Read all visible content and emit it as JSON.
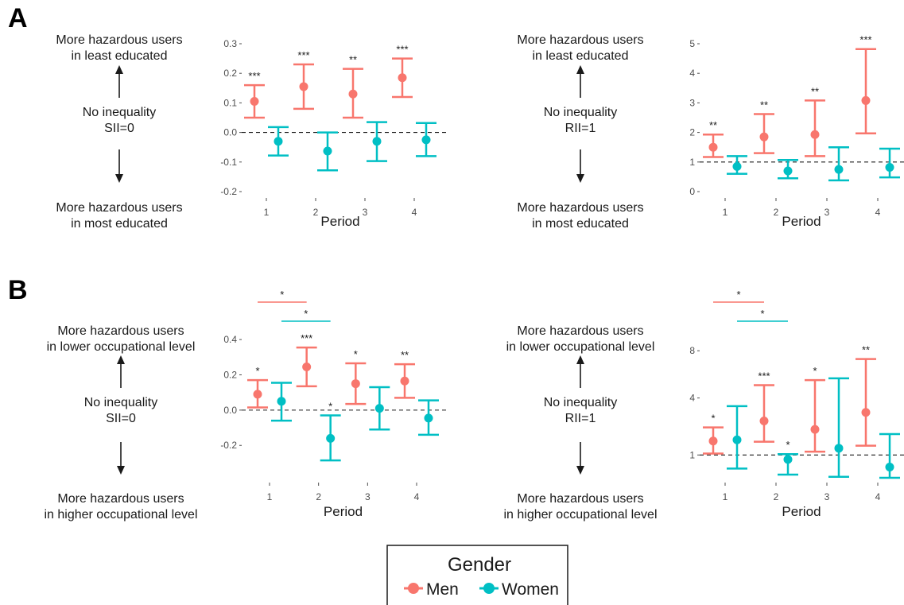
{
  "colors": {
    "men": "#F8766D",
    "women": "#00BFC4",
    "ink": "#1a1a1a",
    "tick": "#4d4d4d"
  },
  "panels": [
    {
      "letter": "A",
      "left": {
        "top_line1": "More hazardous users",
        "top_line2": "in least educated",
        "mid_line1": "No inequality",
        "mid_line2": "SII=0",
        "bottom_line1": "More hazardous users",
        "bottom_line2": "in most educated"
      },
      "right": {
        "top_line1": "More hazardous users",
        "top_line2": "in least educated",
        "mid_line1": "No inequality",
        "mid_line2": "RII=1",
        "bottom_line1": "More hazardous users",
        "bottom_line2": "in most educated"
      }
    },
    {
      "letter": "B",
      "left": {
        "top_line1": "More hazardous users",
        "top_line2": "in lower occupational level",
        "mid_line1": "No inequality",
        "mid_line2": "SII=0",
        "bottom_line1": "More hazardous users",
        "bottom_line2": "in higher occupational level"
      },
      "right": {
        "top_line1": "More hazardous users",
        "top_line2": "in lower occupational level",
        "mid_line1": "No inequality",
        "mid_line2": "RII=1",
        "bottom_line1": "More hazardous users",
        "bottom_line2": "in higher occupational level"
      }
    }
  ],
  "legend": {
    "title": "Gender",
    "men_label": "Men",
    "women_label": "Women"
  },
  "chart_data": [
    {
      "id": "A-SII",
      "type": "errorbar",
      "xlabel": "Period",
      "ylabel": "",
      "categories": [
        "1",
        "2",
        "3",
        "4"
      ],
      "ylim": [
        -0.2,
        0.3
      ],
      "yticks": [
        -0.2,
        -0.1,
        0.0,
        0.1,
        0.2,
        0.3
      ],
      "ytick_labels": [
        "-0.2",
        "-0.1",
        "0.0",
        "0.1",
        "0.2",
        "0.3"
      ],
      "reference_line": 0,
      "series": [
        {
          "name": "Men",
          "estimate": [
            0.105,
            0.155,
            0.13,
            0.185
          ],
          "lower": [
            0.05,
            0.08,
            0.05,
            0.12
          ],
          "upper": [
            0.16,
            0.23,
            0.215,
            0.25
          ],
          "significance": [
            "***",
            "***",
            "**",
            "***"
          ]
        },
        {
          "name": "Women",
          "estimate": [
            -0.03,
            -0.063,
            -0.03,
            -0.025
          ],
          "lower": [
            -0.078,
            -0.128,
            -0.097,
            -0.08
          ],
          "upper": [
            0.018,
            0.0,
            0.035,
            0.032
          ],
          "significance": [
            "",
            "",
            "",
            ""
          ]
        }
      ],
      "brackets": []
    },
    {
      "id": "A-RII",
      "type": "errorbar",
      "xlabel": "Period",
      "ylabel": "",
      "categories": [
        "1",
        "2",
        "3",
        "4"
      ],
      "ylim": [
        0,
        5
      ],
      "yticks": [
        0,
        1,
        2,
        3,
        4,
        5
      ],
      "ytick_labels": [
        "0",
        "1",
        "2",
        "3",
        "4",
        "5"
      ],
      "reference_line": 1,
      "series": [
        {
          "name": "Men",
          "estimate": [
            1.5,
            1.85,
            1.93,
            3.08
          ],
          "lower": [
            1.17,
            1.3,
            1.2,
            1.97
          ],
          "upper": [
            1.93,
            2.62,
            3.08,
            4.82
          ],
          "significance": [
            "**",
            "**",
            "**",
            "***"
          ]
        },
        {
          "name": "Women",
          "estimate": [
            0.85,
            0.7,
            0.75,
            0.82
          ],
          "lower": [
            0.6,
            0.45,
            0.38,
            0.48
          ],
          "upper": [
            1.2,
            1.07,
            1.5,
            1.45
          ],
          "significance": [
            "",
            "",
            "",
            ""
          ]
        }
      ],
      "brackets": []
    },
    {
      "id": "B-SII",
      "type": "errorbar",
      "xlabel": "Period",
      "ylabel": "",
      "categories": [
        "1",
        "2",
        "3",
        "4"
      ],
      "ylim": [
        -0.28,
        0.45
      ],
      "yticks": [
        -0.2,
        0.0,
        0.2,
        0.4
      ],
      "ytick_labels": [
        "-0.2",
        "0.0",
        "0.2",
        "0.4"
      ],
      "reference_line": 0,
      "series": [
        {
          "name": "Men",
          "estimate": [
            0.09,
            0.245,
            0.15,
            0.165
          ],
          "lower": [
            0.015,
            0.135,
            0.035,
            0.07
          ],
          "upper": [
            0.17,
            0.355,
            0.265,
            0.26
          ],
          "significance": [
            "*",
            "***",
            "*",
            "**"
          ]
        },
        {
          "name": "Women",
          "estimate": [
            0.05,
            -0.16,
            0.01,
            -0.045
          ],
          "lower": [
            -0.06,
            -0.285,
            -0.11,
            -0.14
          ],
          "upper": [
            0.155,
            -0.03,
            0.13,
            0.055
          ],
          "significance": [
            "",
            "*",
            "",
            ""
          ]
        }
      ],
      "brackets": [
        {
          "series": "Men",
          "from": 0,
          "to": 1,
          "label": "*"
        },
        {
          "series": "Women",
          "from": 0,
          "to": 1,
          "label": "*"
        }
      ]
    },
    {
      "id": "B-RII",
      "type": "errorbar",
      "xlabel": "Period",
      "ylabel": "",
      "categories": [
        "1",
        "2",
        "3",
        "4"
      ],
      "ylim": [
        0.7,
        9.5
      ],
      "scale": "sqrt",
      "yticks": [
        1,
        4,
        8
      ],
      "ytick_labels": [
        "1",
        "4",
        "8"
      ],
      "reference_line": 1,
      "series": [
        {
          "name": "Men",
          "estimate": [
            1.55,
            2.55,
            2.1,
            3.05
          ],
          "lower": [
            1.05,
            1.52,
            1.12,
            1.35
          ],
          "upper": [
            2.2,
            4.95,
            5.35,
            7.2
          ],
          "significance": [
            "*",
            "***",
            "*",
            "**"
          ]
        },
        {
          "name": "Women",
          "estimate": [
            1.6,
            0.85,
            1.25,
            0.62
          ],
          "lower": [
            0.58,
            0.43,
            0.38,
            0.36
          ],
          "upper": [
            3.45,
            1.03,
            5.5,
            1.87
          ],
          "significance": [
            "",
            "*",
            "",
            ""
          ]
        }
      ],
      "brackets": [
        {
          "series": "Men",
          "from": 0,
          "to": 1,
          "label": "*"
        },
        {
          "series": "Women",
          "from": 0,
          "to": 1,
          "label": "*"
        }
      ]
    }
  ]
}
